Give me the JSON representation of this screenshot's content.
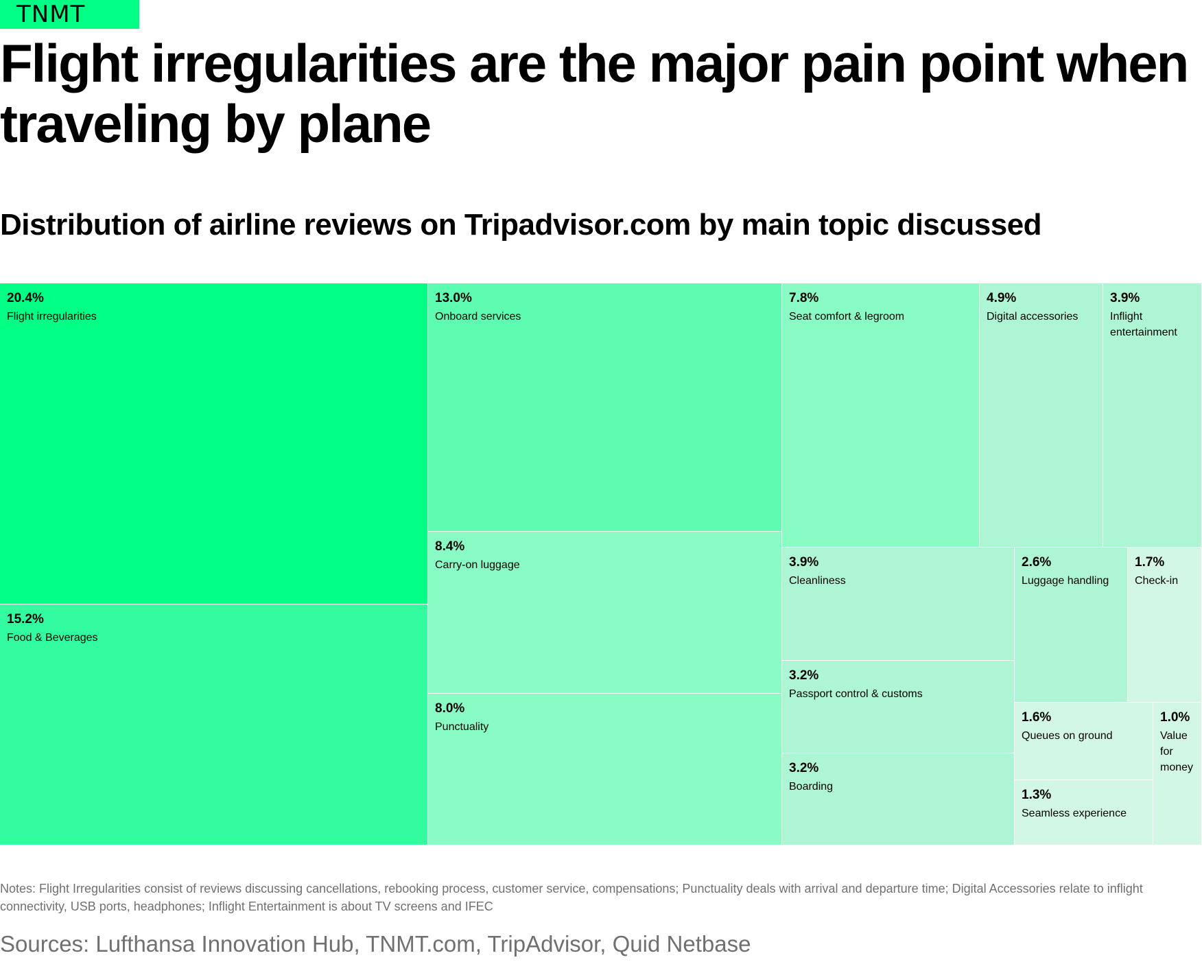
{
  "brand": {
    "logo_text": "TNMT",
    "logo_color": "#00ff84"
  },
  "title": "Flight irregularities are the major pain point when traveling by plane",
  "subtitle": "Distribution of airline reviews on Tripadvisor.com by main topic discussed",
  "chart_data": {
    "type": "treemap",
    "unit": "%",
    "items": [
      {
        "value": 20.4,
        "value_label": "20.4%",
        "label": "Flight irregularities",
        "color": "#00ff84"
      },
      {
        "value": 15.2,
        "value_label": "15.2%",
        "label": "Food & Beverages",
        "color": "#33fba0"
      },
      {
        "value": 13.0,
        "value_label": "13.0%",
        "label": "Onboard services",
        "color": "#5dfcb0"
      },
      {
        "value": 8.4,
        "value_label": "8.4%",
        "label": "Carry-on luggage",
        "color": "#89fbc5"
      },
      {
        "value": 8.0,
        "value_label": "8.0%",
        "label": "Punctuality",
        "color": "#89fbc5"
      },
      {
        "value": 7.8,
        "value_label": "7.8%",
        "label": "Seat comfort & legroom",
        "color": "#89fbc5"
      },
      {
        "value": 4.9,
        "value_label": "4.9%",
        "label": "Digital accessories",
        "color": "#aef5d5"
      },
      {
        "value": 3.9,
        "value_label": "3.9%",
        "label": "Inflight entertainment",
        "color": "#aef5d5"
      },
      {
        "value": 3.9,
        "value_label": "3.9%",
        "label": "Cleanliness",
        "color": "#aef5d5"
      },
      {
        "value": 2.6,
        "value_label": "2.6%",
        "label": "Luggage handling",
        "color": "#aef5d5"
      },
      {
        "value": 1.7,
        "value_label": "1.7%",
        "label": "Check-in",
        "color": "#d2f7e4"
      },
      {
        "value": 3.2,
        "value_label": "3.2%",
        "label": "Passport control & customs",
        "color": "#aef5d5"
      },
      {
        "value": 3.2,
        "value_label": "3.2%",
        "label": "Boarding",
        "color": "#aef5d5"
      },
      {
        "value": 1.6,
        "value_label": "1.6%",
        "label": "Queues on ground",
        "color": "#d2f7e4"
      },
      {
        "value": 1.0,
        "value_label": "1.0%",
        "label": "Value for money",
        "color": "#d2f7e4"
      },
      {
        "value": 1.3,
        "value_label": "1.3%",
        "label": "Seamless experience",
        "color": "#d2f7e4"
      }
    ]
  },
  "notes": "Notes: Flight Irregularities consist of reviews discussing cancellations, rebooking process, customer service, compensations; Punctuality deals with arrival and departure time; Digital Accessories relate to inflight connectivity, USB ports, headphones; Inflight Entertainment is about TV screens and IFEC",
  "sources": "Sources: Lufthansa Innovation Hub, TNMT.com, TripAdvisor, Quid Netbase"
}
